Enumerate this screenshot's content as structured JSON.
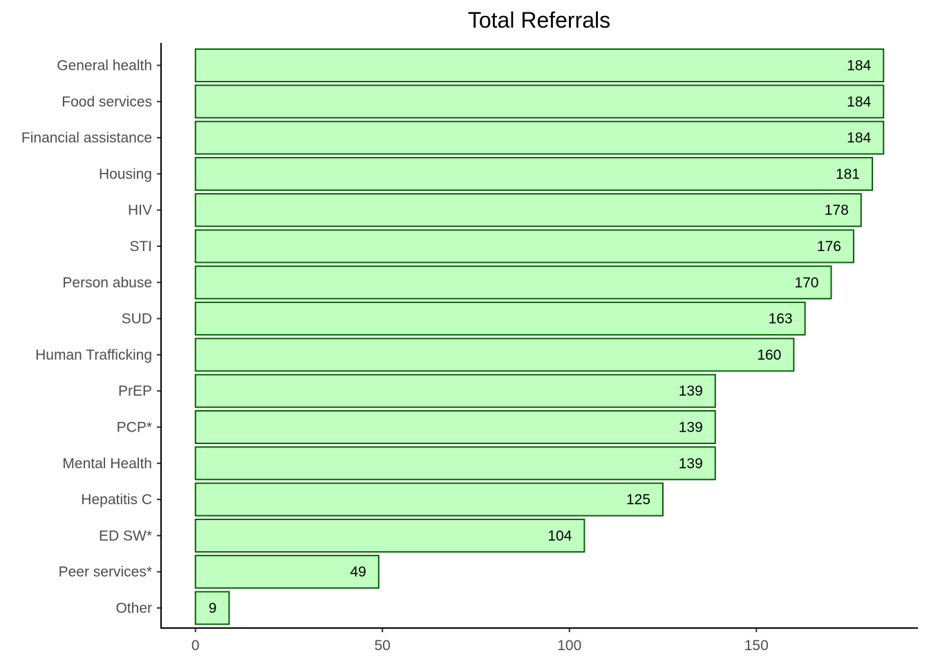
{
  "chart_data": {
    "type": "bar",
    "orientation": "horizontal",
    "title": "Total Referrals",
    "xlabel": "",
    "ylabel": "",
    "categories": [
      "General health",
      "Food services",
      "Financial assistance",
      "Housing",
      "HIV",
      "STI",
      "Person abuse",
      "SUD",
      "Human Trafficking",
      "PrEP",
      "PCP*",
      "Mental Health",
      "Hepatitis C",
      "ED SW*",
      "Peer services*",
      "Other"
    ],
    "values": [
      184,
      184,
      184,
      181,
      178,
      176,
      170,
      163,
      160,
      139,
      139,
      139,
      125,
      104,
      49,
      9
    ],
    "data_labels": [
      "184",
      "184",
      "184",
      "181",
      "178",
      "176",
      "170",
      "163",
      "160",
      "139",
      "139",
      "139",
      "125",
      "104",
      "49",
      "9"
    ],
    "x_ticks": [
      0,
      50,
      100,
      150
    ],
    "x_tick_labels": [
      "0",
      "50",
      "100",
      "150"
    ],
    "xlim": [
      -9.2,
      193.2
    ],
    "grid": false,
    "legend": "none",
    "colors": {
      "bar_fill": "#c1ffc1",
      "bar_stroke": "#006400",
      "axis": "#000000",
      "tick_text": "#4d4d4d",
      "label_text": "#000000"
    }
  }
}
